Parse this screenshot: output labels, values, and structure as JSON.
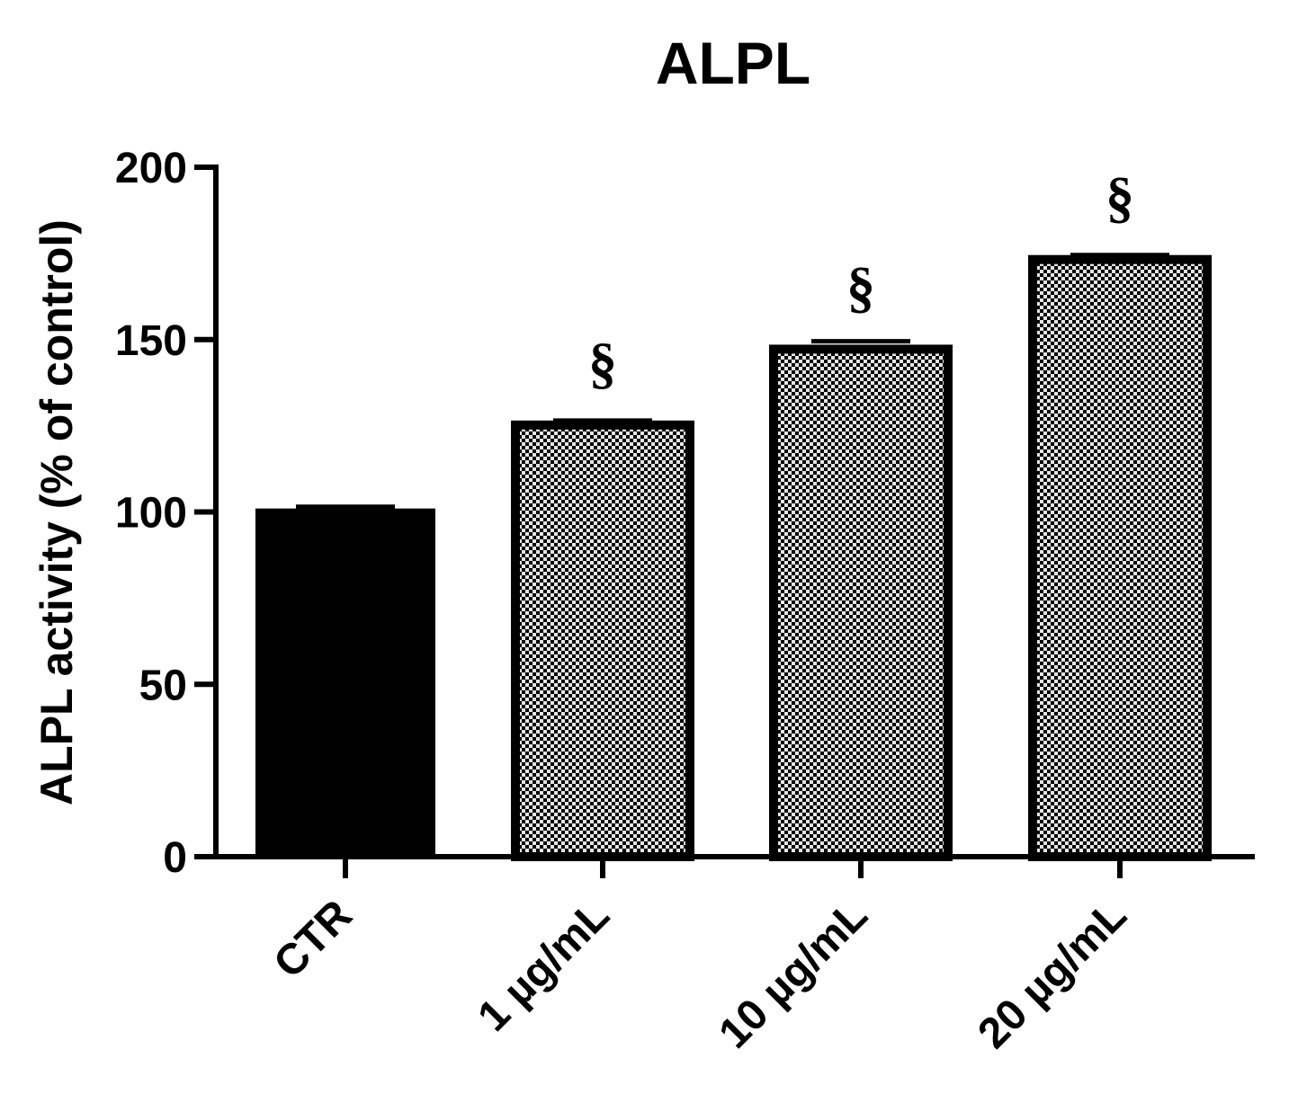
{
  "chart_data": {
    "type": "bar",
    "title": "ALPL",
    "ylabel": "ALPL activity (% of control)",
    "xlabel": "",
    "ylim": [
      0,
      200
    ],
    "yticks": [
      0,
      50,
      100,
      150,
      200
    ],
    "ytick_labels": [
      "0",
      "50",
      "100",
      "150",
      "200"
    ],
    "categories": [
      "CTR",
      "1 µg/mL",
      "10 µg/mL",
      "20 µg/mL"
    ],
    "values": [
      101,
      126,
      148,
      174
    ],
    "errors": [
      0.5,
      0.5,
      1.5,
      0.5
    ],
    "annotations": [
      "",
      "§",
      "§",
      "§"
    ],
    "fills": [
      "solid",
      "checkered",
      "checkered",
      "checkered"
    ],
    "colors": {
      "solid": "#000000",
      "checker_dark": "#000000",
      "checker_light": "#e6e6e6"
    },
    "grid": false,
    "legend": "none"
  }
}
